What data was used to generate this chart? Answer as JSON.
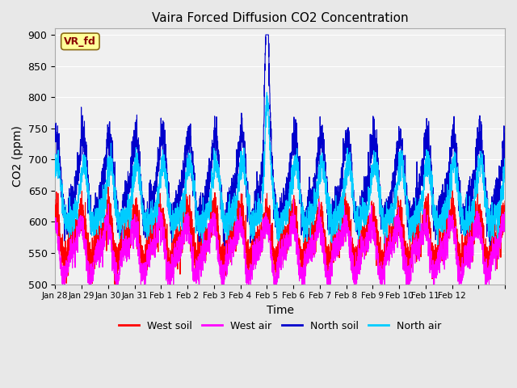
{
  "title": "Vaira Forced Diffusion CO2 Concentration",
  "xlabel": "Time",
  "ylabel": "CO2 (ppm)",
  "ylim": [
    500,
    910
  ],
  "yticks": [
    500,
    550,
    600,
    650,
    700,
    750,
    800,
    850,
    900
  ],
  "legend_label": "VR_fd",
  "series": {
    "west_soil": {
      "color": "#ff0000",
      "label": "West soil"
    },
    "west_air": {
      "color": "#ff00ff",
      "label": "West air"
    },
    "north_soil": {
      "color": "#0000cc",
      "label": "North soil"
    },
    "north_air": {
      "color": "#00ccff",
      "label": "North air"
    }
  },
  "bg_color": "#e8e8e8",
  "plot_bg_color": "#f0f0f0",
  "n_points": 3600,
  "x_start": 28,
  "x_end": 45,
  "xtick_days": [
    28,
    29,
    30,
    31,
    32,
    33,
    34,
    35,
    36,
    37,
    38,
    39,
    40,
    41,
    42,
    43,
    44,
    45
  ],
  "xtick_labels": [
    "Jan 28",
    "Jan 29",
    "Jan 30",
    "Jan 31",
    "Feb 1",
    "Feb 2",
    "Feb 3",
    "Feb 4",
    "Feb 5",
    "Feb 6",
    "Feb 7",
    "Feb 8",
    "Feb 9",
    "Feb 10",
    "Feb 11",
    "Feb 12",
    "",
    ""
  ]
}
